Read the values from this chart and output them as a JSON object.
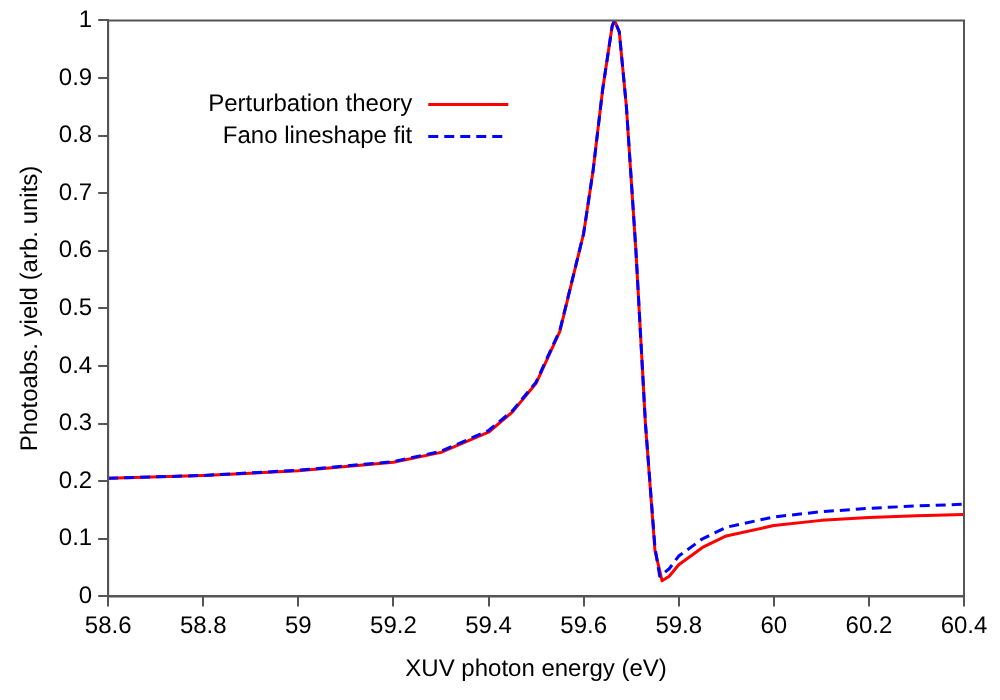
{
  "chart_data": {
    "type": "line",
    "xlabel": "XUV photon energy (eV)",
    "ylabel": "Photoabs. yield (arb. units)",
    "xlim": [
      58.6,
      60.4
    ],
    "xticks": [
      58.6,
      58.8,
      59,
      59.2,
      59.4,
      59.6,
      59.8,
      60,
      60.2,
      60.4
    ],
    "ylim": [
      0,
      1
    ],
    "yticks": [
      0,
      0.1,
      0.2,
      0.3,
      0.4,
      0.5,
      0.6,
      0.7,
      0.8,
      0.9,
      1
    ],
    "grid": false,
    "legend": "top left",
    "marker": "none",
    "series": [
      {
        "name": "Perturbation theory",
        "color": "#ff0000",
        "line_style": "solid",
        "x": [
          58.6,
          58.8,
          59.0,
          59.2,
          59.3,
          59.4,
          59.45,
          59.5,
          59.55,
          59.6,
          59.62,
          59.64,
          59.66,
          59.665,
          59.675,
          59.69,
          59.71,
          59.73,
          59.75,
          59.765,
          59.78,
          59.8,
          59.85,
          59.9,
          60.0,
          60.1,
          60.2,
          60.3,
          60.4
        ],
        "values": [
          0.205,
          0.21,
          0.218,
          0.233,
          0.25,
          0.285,
          0.32,
          0.37,
          0.46,
          0.63,
          0.74,
          0.88,
          0.99,
          1.0,
          0.98,
          0.85,
          0.6,
          0.3,
          0.08,
          0.027,
          0.035,
          0.055,
          0.085,
          0.105,
          0.123,
          0.132,
          0.137,
          0.14,
          0.142
        ]
      },
      {
        "name": "Fano lineshape fit",
        "color": "#0000ff",
        "line_style": "dashed",
        "x": [
          58.6,
          58.8,
          59.0,
          59.2,
          59.3,
          59.4,
          59.45,
          59.5,
          59.55,
          59.6,
          59.62,
          59.64,
          59.66,
          59.665,
          59.675,
          59.69,
          59.71,
          59.73,
          59.75,
          59.76,
          59.78,
          59.8,
          59.85,
          59.9,
          60.0,
          60.1,
          60.2,
          60.3,
          60.4
        ],
        "values": [
          0.205,
          0.21,
          0.219,
          0.234,
          0.252,
          0.288,
          0.322,
          0.372,
          0.462,
          0.63,
          0.74,
          0.88,
          0.99,
          1.0,
          0.98,
          0.85,
          0.6,
          0.3,
          0.085,
          0.035,
          0.048,
          0.07,
          0.1,
          0.12,
          0.138,
          0.147,
          0.153,
          0.157,
          0.16
        ]
      }
    ]
  }
}
